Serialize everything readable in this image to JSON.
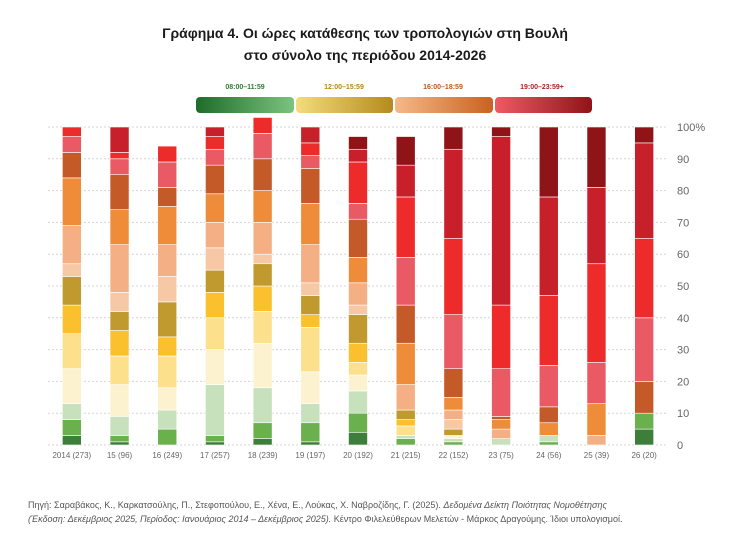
{
  "title_line1": "Γράφημα 4. Οι ώρες κατάθεσης των τροπολογιών στη Βουλή",
  "title_line2": "στο σύνολο της περιόδου 2014-2026",
  "legend": [
    {
      "label": "08:00–11:59",
      "color": "#2e7d32",
      "gradient": [
        "#1f6b2a",
        "#7bc47f"
      ],
      "label_color": "#2e7d32"
    },
    {
      "label": "12:00–15:59",
      "color": "#c9a23a",
      "gradient": [
        "#f3dc7d",
        "#b58a1f"
      ],
      "label_color": "#b8860b"
    },
    {
      "label": "16:00–18:59",
      "color": "#e07b39",
      "gradient": [
        "#f5b98a",
        "#c8621f"
      ],
      "label_color": "#c0561a"
    },
    {
      "label": "19:00–23:59+",
      "color": "#b71c1c",
      "gradient": [
        "#ef5a64",
        "#8e1418"
      ],
      "label_color": "#b71c1c"
    }
  ],
  "source": {
    "prefix": "Πηγή: Σαραβάκος, Κ., Καρκατσούλης, Π., Στεφοπούλου, Ε., Χένα, Ε., Λούκας, Χ. Ναβροζίδης, Γ. (2025). ",
    "italic": "Δεδομένα Δείκτη Ποιότητας Νομοθέτησης",
    "line2_italic": "(Έκδοση: Δεκέμβριος 2025, Περίοδος: Ιανουάριος 2014 – Δεκέμβριος 2025).",
    "line2_rest": " Κέντρο Φιλελεύθερων Μελετών - Μάρκος Δραγούμης. Ίδιοι υπολογισμοί."
  },
  "chart_data": {
    "type": "bar",
    "stacked": true,
    "categories": [
      "2014 (273)",
      "15 (96)",
      "16 (249)",
      "17 (257)",
      "18 (239)",
      "19 (197)",
      "20 (192)",
      "21 (215)",
      "22 (152)",
      "23 (75)",
      "24 (56)",
      "25 (39)",
      "26 (20)"
    ],
    "ylim": [
      0,
      100
    ],
    "yticks": [
      "0",
      "10",
      "20",
      "30",
      "40",
      "50",
      "60",
      "70",
      "80",
      "90",
      "100%"
    ],
    "grid": true,
    "legend_position": "top",
    "series": [
      {
        "color": "#3d7f3a",
        "values": [
          3,
          1,
          0,
          1,
          2,
          1,
          4,
          0,
          0,
          0,
          0,
          0,
          5
        ]
      },
      {
        "color": "#6ab04c",
        "values": [
          5,
          2,
          5,
          2,
          5,
          6,
          6,
          2,
          1,
          0,
          1,
          0,
          5
        ]
      },
      {
        "color": "#c6e1bc",
        "values": [
          5,
          6,
          6,
          16,
          11,
          6,
          7,
          1,
          1,
          2,
          2,
          0,
          0
        ]
      },
      {
        "color": "#fdf2cf",
        "values": [
          11,
          10,
          7,
          11,
          14,
          10,
          5,
          0,
          1,
          0,
          0,
          0,
          0
        ]
      },
      {
        "color": "#fde08c",
        "values": [
          11,
          9,
          10,
          10,
          10,
          14,
          4,
          3,
          0,
          0,
          0,
          0,
          0
        ]
      },
      {
        "color": "#fbc02d",
        "values": [
          9,
          8,
          6,
          8,
          8,
          4,
          6,
          2,
          0,
          0,
          0,
          0,
          0
        ]
      },
      {
        "color": "#c09a2e",
        "values": [
          9,
          6,
          11,
          7,
          7,
          6,
          9,
          3,
          2,
          0,
          0,
          0,
          0
        ]
      },
      {
        "color": "#f6c8a6",
        "values": [
          4,
          6,
          8,
          7,
          3,
          4,
          3,
          0,
          3,
          0,
          0,
          0,
          0
        ]
      },
      {
        "color": "#f4b084",
        "values": [
          12,
          15,
          10,
          8,
          10,
          12,
          7,
          8,
          3,
          3,
          0,
          3,
          0
        ]
      },
      {
        "color": "#ef8c3a",
        "values": [
          15,
          11,
          12,
          9,
          10,
          13,
          8,
          13,
          4,
          3,
          4,
          10,
          0
        ]
      },
      {
        "color": "#c45a28",
        "values": [
          8,
          11,
          6,
          9,
          10,
          11,
          12,
          12,
          9,
          1,
          5,
          0,
          10
        ]
      },
      {
        "color": "#ea5a64",
        "values": [
          5,
          5,
          8,
          5,
          8,
          4,
          5,
          15,
          17,
          15,
          13,
          13,
          20
        ]
      },
      {
        "color": "#ee2b2b",
        "values": [
          3,
          2,
          5,
          4,
          5,
          4,
          13,
          19,
          24,
          20,
          22,
          31,
          25
        ]
      },
      {
        "color": "#c8202a",
        "values": [
          0,
          8,
          0,
          3,
          0,
          5,
          4,
          10,
          28,
          53,
          31,
          24,
          30
        ]
      },
      {
        "color": "#8e1418",
        "values": [
          0,
          0,
          0,
          0,
          0,
          0,
          4,
          9,
          7,
          3,
          22,
          19,
          5
        ]
      }
    ]
  }
}
